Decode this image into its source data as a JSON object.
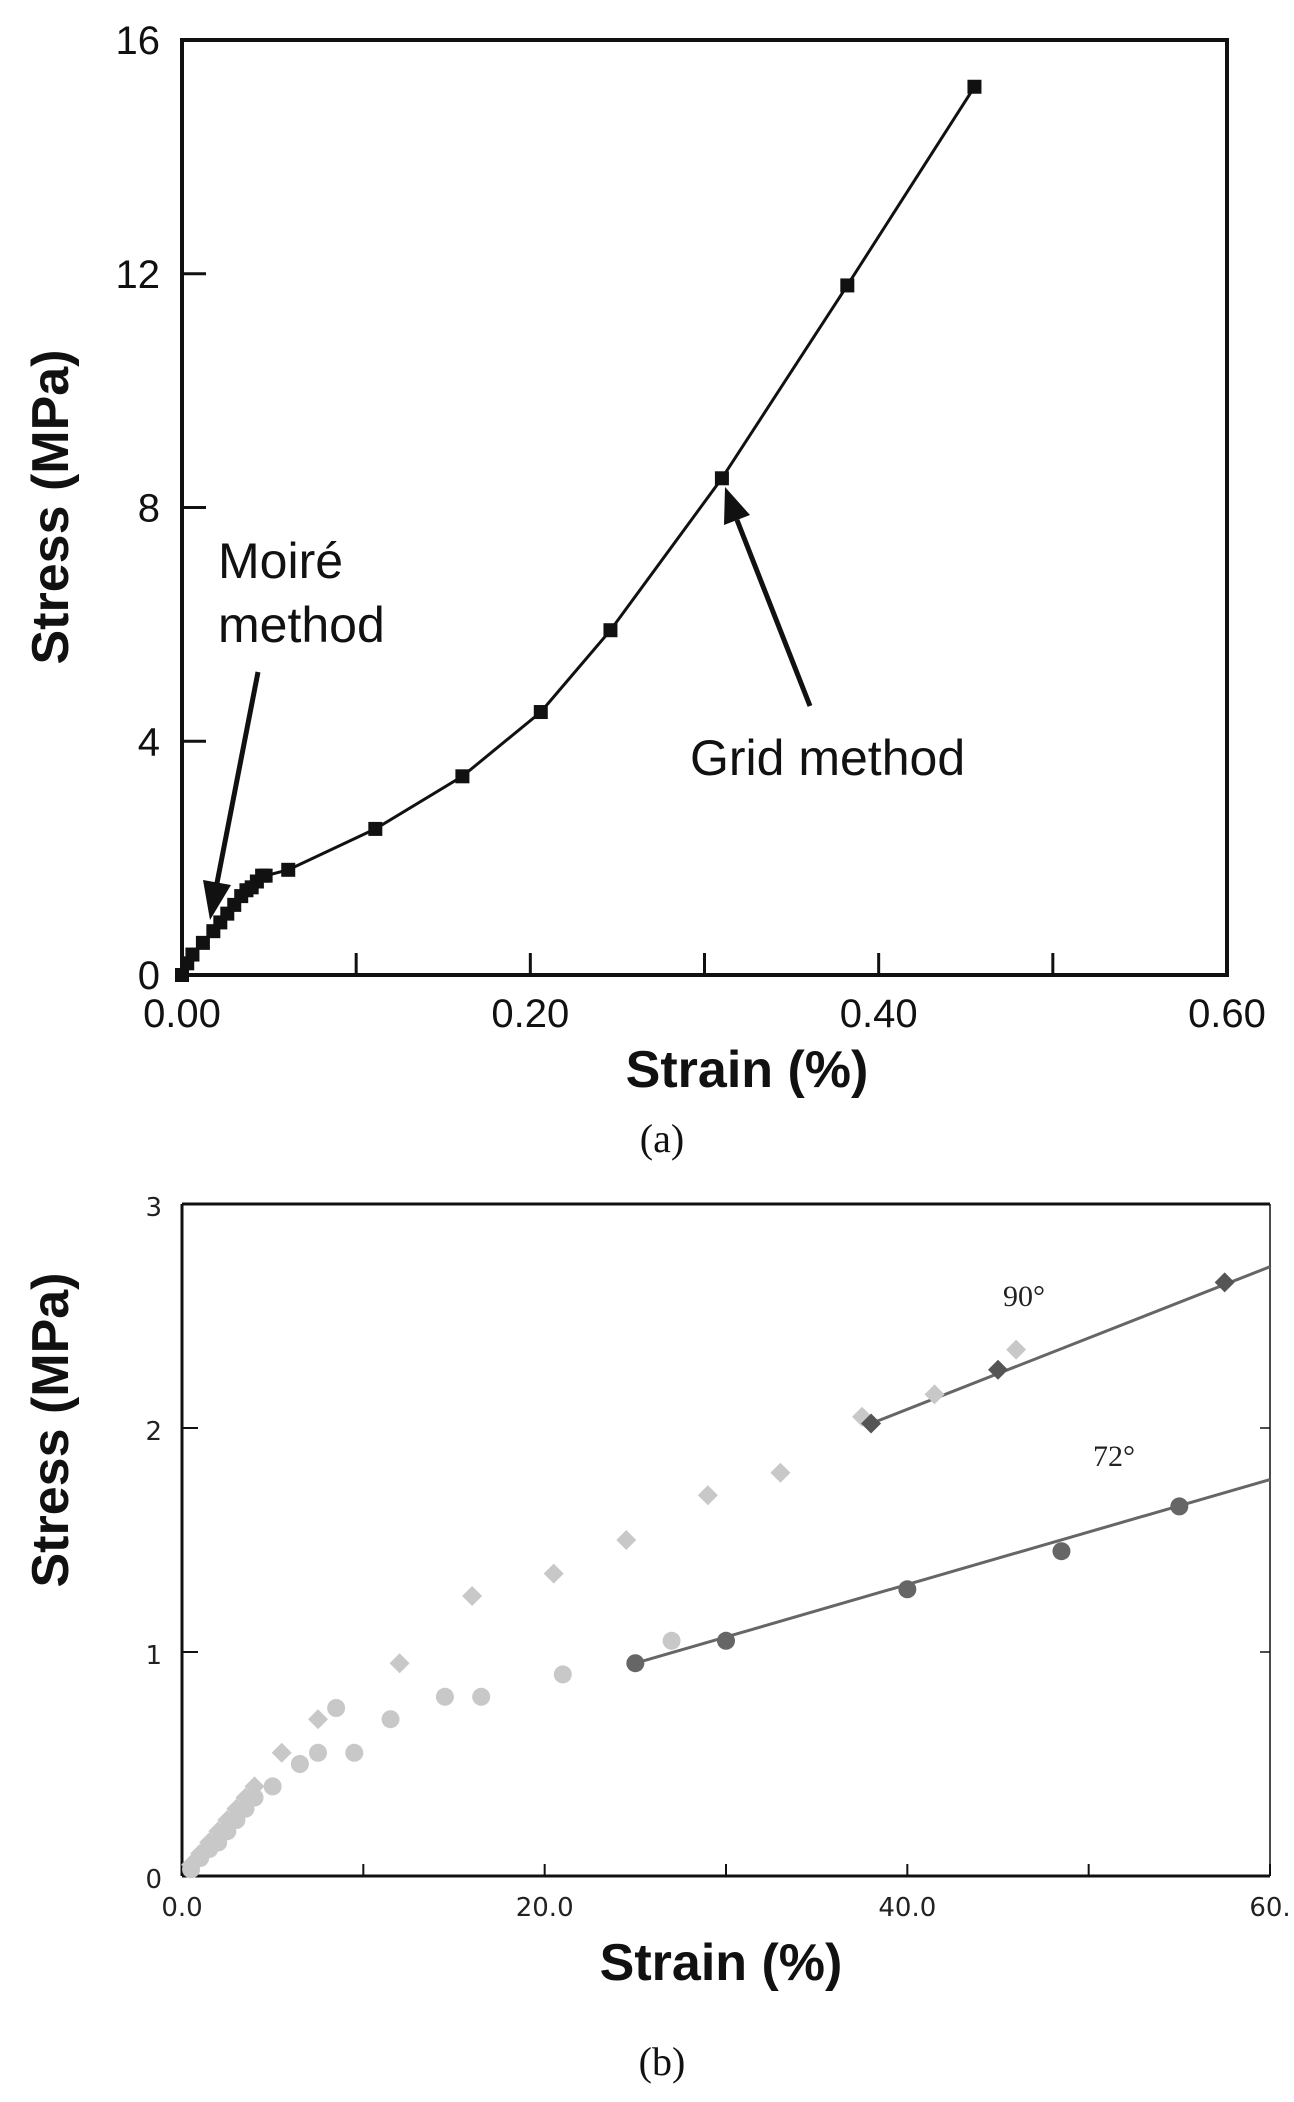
{
  "chart_data": [
    {
      "type": "line",
      "title": "",
      "xlabel": "Strain (%)",
      "ylabel": "Stress (MPa)",
      "xlim": [
        0,
        0.6
      ],
      "ylim": [
        0,
        16
      ],
      "xticks": [
        "0.00",
        "0.20",
        "0.40",
        "0.60"
      ],
      "yticks": [
        "0",
        "4",
        "8",
        "12",
        "16"
      ],
      "grid": false,
      "series": [
        {
          "marker": "square",
          "x": [
            0.0,
            0.003,
            0.006,
            0.012,
            0.018,
            0.022,
            0.026,
            0.03,
            0.034,
            0.037,
            0.04,
            0.043,
            0.046,
            0.048,
            0.061,
            0.111,
            0.161,
            0.206,
            0.246,
            0.31,
            0.382,
            0.455
          ],
          "y": [
            0.0,
            0.2,
            0.35,
            0.55,
            0.75,
            0.9,
            1.05,
            1.2,
            1.35,
            1.45,
            1.5,
            1.6,
            1.7,
            1.7,
            1.8,
            2.5,
            3.4,
            4.5,
            5.9,
            8.5,
            11.8,
            15.2
          ]
        }
      ],
      "annotations": [
        {
          "lines": [
            "Moiré",
            "method"
          ],
          "points_to": {
            "x": 0.018,
            "y": 1.2
          }
        },
        {
          "lines": [
            "Grid method"
          ],
          "points_to": {
            "x": 0.31,
            "y": 8.5
          }
        }
      ],
      "caption": "(a)"
    },
    {
      "type": "scatter",
      "title": "",
      "xlabel": "Strain (%)",
      "ylabel": "Stress (MPa)",
      "xlim": [
        0,
        60
      ],
      "ylim": [
        0,
        3
      ],
      "xticks": [
        "0.0",
        "20.0",
        "40.0",
        "60."
      ],
      "yticks": [
        "0",
        "1",
        "2",
        "3"
      ],
      "grid": false,
      "series": [
        {
          "label": "90°",
          "marker": "diamond",
          "color": "#c8c8c8",
          "x": [
            0.5,
            1.0,
            1.5,
            2.0,
            2.5,
            3.0,
            3.5,
            4.0,
            5.5,
            7.5,
            12.0,
            16.0,
            20.5,
            24.5,
            29.0,
            33.0,
            37.5,
            41.5,
            46.0
          ],
          "y": [
            0.05,
            0.1,
            0.15,
            0.2,
            0.25,
            0.3,
            0.35,
            0.4,
            0.55,
            0.7,
            0.95,
            1.25,
            1.35,
            1.5,
            1.7,
            1.8,
            2.05,
            2.15,
            2.35
          ]
        },
        {
          "label": "72°",
          "marker": "circle",
          "color": "#c8c8c8",
          "x": [
            0.5,
            1.0,
            1.5,
            2.0,
            2.5,
            3.0,
            3.5,
            4.0,
            5.0,
            6.5,
            7.5,
            8.5,
            9.5,
            11.5,
            14.5,
            16.5,
            21.0,
            27.0
          ],
          "y": [
            0.03,
            0.08,
            0.12,
            0.15,
            0.2,
            0.25,
            0.3,
            0.35,
            0.4,
            0.5,
            0.55,
            0.75,
            0.55,
            0.7,
            0.8,
            0.8,
            0.9,
            1.05
          ]
        },
        {
          "label": "90° fit",
          "marker": "diamond",
          "color": "#555555",
          "x": [
            38.0,
            45.0,
            57.5
          ],
          "y": [
            2.02,
            2.26,
            2.65
          ]
        },
        {
          "label": "72° fit",
          "marker": "circle",
          "color": "#666666",
          "x": [
            25.0,
            30.0,
            40.0,
            48.5,
            55.0
          ],
          "y": [
            0.95,
            1.05,
            1.28,
            1.45,
            1.65
          ]
        }
      ],
      "fit_lines": [
        {
          "label": "90°",
          "x": [
            38.0,
            60.0
          ],
          "y": [
            2.02,
            2.72
          ]
        },
        {
          "label": "72°",
          "x": [
            25.0,
            60.0
          ],
          "y": [
            0.95,
            1.77
          ]
        }
      ],
      "caption": "(b)"
    }
  ]
}
